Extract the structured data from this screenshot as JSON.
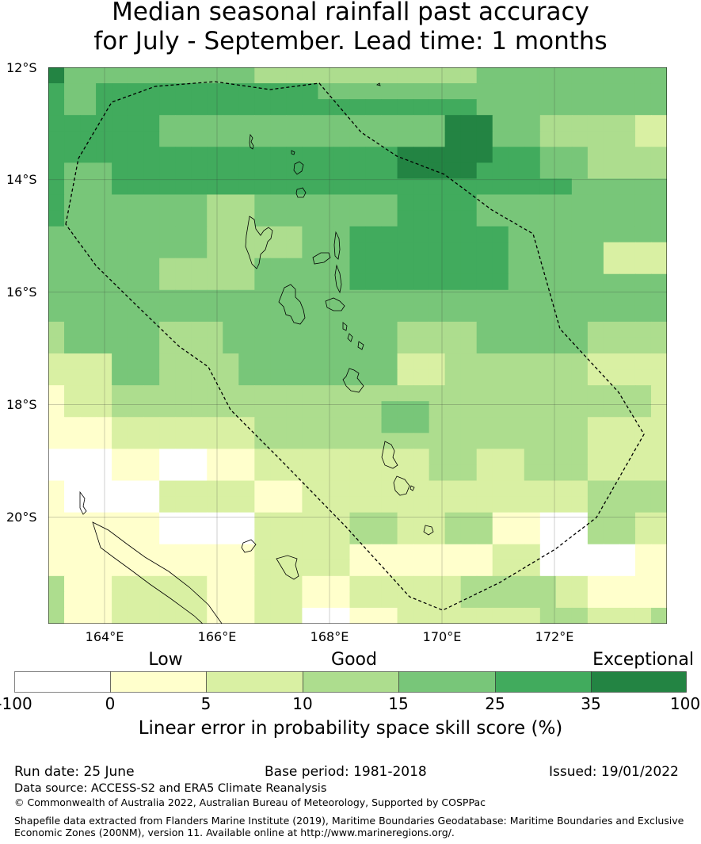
{
  "title": {
    "line1": "Median seasonal rainfall past accuracy",
    "line2": "for July - September. Lead time: 1 months"
  },
  "map": {
    "latitude_labels": [
      "12°S",
      "14°S",
      "16°S",
      "18°S",
      "20°S"
    ],
    "longitude_labels": [
      "164°E",
      "166°E",
      "168°E",
      "170°E",
      "172°E"
    ],
    "lon_range": [
      163.0,
      174.0
    ],
    "lat_range": [
      -21.9,
      -12.0
    ],
    "boundary": "dashed EEZ outline",
    "colors": [
      "#ffffff",
      "#ffffcc",
      "#d9f0a3",
      "#addd8e",
      "#78c679",
      "#41ab5d",
      "#238443"
    ],
    "grid": [
      [
        6,
        4,
        4,
        4,
        4,
        4,
        4,
        4,
        4,
        4,
        4,
        4,
        4,
        3,
        3,
        3,
        3,
        3,
        3,
        3,
        3,
        3,
        3,
        3,
        3,
        3,
        3,
        4,
        4,
        4,
        4,
        4,
        4,
        4,
        4,
        4,
        4,
        4,
        4
      ],
      [
        5,
        4,
        4,
        5,
        5,
        5,
        5,
        5,
        5,
        5,
        5,
        5,
        5,
        5,
        5,
        5,
        5,
        4,
        4,
        4,
        4,
        4,
        4,
        4,
        4,
        4,
        4,
        4,
        4,
        4,
        4,
        4,
        4,
        4,
        4,
        4,
        4,
        4,
        4
      ],
      [
        5,
        4,
        4,
        5,
        5,
        5,
        5,
        5,
        5,
        5,
        5,
        5,
        5,
        5,
        5,
        5,
        5,
        5,
        5,
        5,
        5,
        5,
        5,
        5,
        5,
        5,
        5,
        4,
        4,
        4,
        4,
        4,
        4,
        4,
        4,
        4,
        4,
        4,
        4
      ],
      [
        5,
        5,
        5,
        5,
        5,
        5,
        5,
        4,
        4,
        4,
        4,
        4,
        4,
        4,
        4,
        4,
        4,
        4,
        4,
        4,
        4,
        4,
        4,
        4,
        4,
        6,
        6,
        6,
        4,
        4,
        4,
        3,
        3,
        3,
        3,
        3,
        3,
        2,
        2
      ],
      [
        5,
        5,
        5,
        5,
        5,
        5,
        5,
        4,
        4,
        4,
        4,
        4,
        4,
        4,
        4,
        4,
        4,
        4,
        4,
        4,
        4,
        4,
        4,
        4,
        4,
        6,
        6,
        6,
        4,
        4,
        4,
        3,
        3,
        3,
        3,
        3,
        3,
        2,
        2
      ],
      [
        5,
        5,
        5,
        5,
        5,
        5,
        5,
        5,
        5,
        5,
        5,
        5,
        5,
        5,
        5,
        5,
        5,
        5,
        5,
        5,
        5,
        5,
        6,
        6,
        6,
        6,
        6,
        6,
        5,
        5,
        5,
        4,
        4,
        4,
        3,
        3,
        3,
        3,
        3
      ],
      [
        5,
        4,
        4,
        4,
        5,
        5,
        5,
        5,
        5,
        5,
        5,
        5,
        5,
        5,
        5,
        5,
        5,
        5,
        5,
        5,
        5,
        5,
        6,
        6,
        6,
        6,
        6,
        5,
        5,
        5,
        5,
        4,
        4,
        4,
        3,
        3,
        3,
        3,
        3
      ],
      [
        5,
        4,
        4,
        4,
        5,
        5,
        5,
        5,
        5,
        5,
        5,
        5,
        5,
        5,
        5,
        5,
        5,
        5,
        5,
        5,
        5,
        5,
        5,
        5,
        5,
        5,
        5,
        5,
        5,
        5,
        5,
        5,
        5,
        4,
        4,
        4,
        4,
        4,
        4
      ],
      [
        5,
        4,
        4,
        4,
        4,
        4,
        4,
        4,
        4,
        4,
        3,
        3,
        3,
        4,
        4,
        4,
        4,
        4,
        4,
        4,
        4,
        4,
        5,
        5,
        5,
        5,
        5,
        4,
        4,
        4,
        4,
        4,
        4,
        4,
        4,
        4,
        4,
        4,
        4
      ],
      [
        5,
        4,
        4,
        4,
        4,
        4,
        4,
        4,
        4,
        4,
        3,
        3,
        3,
        4,
        4,
        4,
        4,
        4,
        4,
        4,
        4,
        4,
        5,
        5,
        5,
        5,
        5,
        4,
        4,
        4,
        4,
        4,
        4,
        4,
        4,
        4,
        4,
        4,
        4
      ],
      [
        4,
        4,
        4,
        4,
        4,
        4,
        4,
        4,
        4,
        4,
        3,
        3,
        3,
        3,
        3,
        3,
        4,
        4,
        4,
        5,
        5,
        5,
        5,
        5,
        5,
        5,
        5,
        5,
        5,
        4,
        4,
        4,
        4,
        4,
        4,
        4,
        4,
        4,
        4
      ],
      [
        4,
        4,
        4,
        4,
        4,
        4,
        4,
        4,
        4,
        4,
        3,
        3,
        3,
        3,
        3,
        3,
        4,
        4,
        4,
        5,
        5,
        5,
        5,
        5,
        5,
        5,
        5,
        5,
        5,
        4,
        4,
        4,
        4,
        4,
        4,
        2,
        2,
        2,
        2
      ],
      [
        4,
        4,
        4,
        4,
        4,
        4,
        4,
        3,
        3,
        3,
        3,
        3,
        3,
        4,
        4,
        4,
        4,
        4,
        4,
        5,
        5,
        5,
        5,
        5,
        5,
        5,
        5,
        5,
        5,
        4,
        4,
        4,
        4,
        4,
        4,
        2,
        2,
        2,
        2
      ],
      [
        4,
        4,
        4,
        4,
        4,
        4,
        4,
        3,
        3,
        3,
        3,
        3,
        3,
        4,
        4,
        4,
        4,
        4,
        4,
        5,
        5,
        5,
        5,
        5,
        5,
        5,
        5,
        5,
        5,
        4,
        4,
        4,
        4,
        4,
        4,
        4,
        4,
        4,
        4
      ],
      [
        4,
        4,
        4,
        4,
        4,
        4,
        4,
        4,
        4,
        4,
        4,
        4,
        4,
        4,
        4,
        4,
        4,
        4,
        4,
        4,
        4,
        4,
        4,
        4,
        4,
        4,
        4,
        4,
        4,
        4,
        4,
        4,
        4,
        4,
        4,
        4,
        4,
        4,
        4
      ],
      [
        4,
        4,
        4,
        4,
        4,
        4,
        4,
        4,
        4,
        4,
        4,
        4,
        4,
        4,
        4,
        4,
        4,
        4,
        4,
        4,
        4,
        4,
        4,
        4,
        4,
        4,
        4,
        4,
        4,
        4,
        4,
        4,
        4,
        4,
        4,
        4,
        4,
        4,
        4
      ],
      [
        3,
        4,
        4,
        4,
        4,
        4,
        4,
        3,
        3,
        3,
        3,
        4,
        4,
        4,
        4,
        4,
        4,
        4,
        4,
        4,
        4,
        4,
        3,
        3,
        3,
        3,
        3,
        4,
        4,
        4,
        4,
        4,
        4,
        4,
        3,
        3,
        3,
        3,
        3
      ],
      [
        3,
        4,
        4,
        4,
        4,
        4,
        4,
        3,
        3,
        3,
        3,
        4,
        4,
        4,
        4,
        4,
        4,
        4,
        4,
        4,
        4,
        4,
        3,
        3,
        3,
        3,
        3,
        4,
        4,
        4,
        4,
        4,
        4,
        4,
        3,
        3,
        3,
        3,
        3
      ],
      [
        2,
        2,
        2,
        2,
        4,
        4,
        4,
        3,
        3,
        3,
        3,
        3,
        4,
        4,
        4,
        4,
        4,
        4,
        4,
        4,
        4,
        4,
        2,
        2,
        2,
        3,
        3,
        3,
        3,
        3,
        3,
        3,
        3,
        3,
        2,
        2,
        2,
        2,
        2
      ],
      [
        2,
        2,
        2,
        2,
        4,
        4,
        4,
        3,
        3,
        3,
        3,
        3,
        4,
        4,
        4,
        4,
        4,
        4,
        4,
        4,
        4,
        4,
        2,
        2,
        2,
        3,
        3,
        3,
        3,
        3,
        3,
        3,
        3,
        3,
        2,
        2,
        2,
        2,
        2
      ],
      [
        1,
        2,
        2,
        2,
        3,
        3,
        3,
        3,
        3,
        3,
        3,
        3,
        3,
        3,
        3,
        3,
        3,
        3,
        3,
        3,
        3,
        3,
        3,
        3,
        3,
        3,
        3,
        3,
        3,
        3,
        3,
        3,
        3,
        3,
        3,
        3,
        3,
        3,
        2
      ],
      [
        1,
        2,
        2,
        2,
        3,
        3,
        3,
        3,
        3,
        3,
        3,
        3,
        3,
        3,
        3,
        3,
        3,
        3,
        3,
        3,
        3,
        4,
        4,
        4,
        3,
        3,
        3,
        3,
        3,
        3,
        3,
        3,
        3,
        3,
        3,
        3,
        3,
        3,
        2
      ],
      [
        1,
        1,
        1,
        1,
        2,
        2,
        2,
        2,
        2,
        2,
        2,
        2,
        2,
        3,
        3,
        3,
        3,
        3,
        3,
        3,
        3,
        4,
        4,
        4,
        3,
        3,
        3,
        3,
        3,
        3,
        3,
        3,
        3,
        3,
        2,
        2,
        2,
        2,
        2
      ],
      [
        1,
        1,
        1,
        1,
        2,
        2,
        2,
        2,
        2,
        2,
        2,
        2,
        2,
        3,
        3,
        3,
        3,
        3,
        3,
        3,
        3,
        3,
        3,
        3,
        3,
        3,
        3,
        3,
        3,
        3,
        3,
        3,
        3,
        3,
        2,
        2,
        2,
        2,
        2
      ],
      [
        0,
        0,
        0,
        0,
        1,
        1,
        1,
        0,
        0,
        0,
        1,
        1,
        1,
        2,
        2,
        2,
        2,
        2,
        2,
        2,
        2,
        2,
        2,
        2,
        3,
        3,
        3,
        2,
        2,
        2,
        3,
        3,
        3,
        3,
        2,
        2,
        2,
        2,
        2
      ],
      [
        0,
        0,
        0,
        0,
        1,
        1,
        1,
        0,
        0,
        0,
        1,
        1,
        1,
        2,
        2,
        2,
        2,
        2,
        2,
        2,
        2,
        2,
        2,
        2,
        3,
        3,
        3,
        2,
        2,
        2,
        3,
        3,
        3,
        3,
        2,
        2,
        2,
        2,
        2
      ],
      [
        1,
        0,
        0,
        0,
        0,
        0,
        0,
        2,
        2,
        2,
        2,
        2,
        2,
        1,
        1,
        1,
        2,
        2,
        2,
        2,
        2,
        2,
        2,
        2,
        2,
        2,
        2,
        2,
        2,
        2,
        2,
        2,
        2,
        2,
        3,
        3,
        3,
        3,
        3
      ],
      [
        1,
        0,
        0,
        0,
        0,
        0,
        0,
        2,
        2,
        2,
        2,
        2,
        2,
        1,
        1,
        1,
        2,
        2,
        2,
        2,
        2,
        2,
        2,
        2,
        2,
        2,
        2,
        2,
        2,
        2,
        2,
        2,
        2,
        2,
        3,
        3,
        3,
        3,
        3
      ],
      [
        1,
        1,
        1,
        1,
        1,
        1,
        1,
        0,
        0,
        0,
        0,
        0,
        0,
        2,
        2,
        2,
        2,
        2,
        2,
        3,
        3,
        3,
        2,
        2,
        2,
        3,
        3,
        3,
        1,
        1,
        1,
        0,
        0,
        0,
        3,
        3,
        3,
        2,
        2
      ],
      [
        1,
        1,
        1,
        1,
        1,
        1,
        1,
        0,
        0,
        0,
        0,
        0,
        0,
        2,
        2,
        2,
        2,
        2,
        2,
        3,
        3,
        3,
        2,
        2,
        2,
        3,
        3,
        3,
        1,
        1,
        1,
        0,
        0,
        0,
        3,
        3,
        3,
        2,
        2
      ],
      [
        1,
        1,
        1,
        1,
        1,
        1,
        1,
        1,
        1,
        1,
        1,
        1,
        1,
        2,
        2,
        2,
        2,
        2,
        2,
        1,
        1,
        1,
        1,
        1,
        1,
        1,
        1,
        1,
        2,
        2,
        2,
        0,
        0,
        0,
        0,
        0,
        0,
        1,
        1
      ],
      [
        1,
        1,
        1,
        1,
        1,
        1,
        1,
        1,
        1,
        1,
        1,
        1,
        1,
        2,
        2,
        2,
        2,
        2,
        2,
        1,
        1,
        1,
        1,
        1,
        1,
        1,
        1,
        1,
        2,
        2,
        2,
        0,
        0,
        0,
        0,
        0,
        0,
        1,
        1
      ],
      [
        3,
        1,
        1,
        1,
        2,
        2,
        2,
        2,
        2,
        2,
        1,
        1,
        1,
        2,
        2,
        2,
        1,
        1,
        1,
        2,
        2,
        2,
        2,
        2,
        2,
        2,
        3,
        3,
        3,
        3,
        3,
        3,
        2,
        2,
        1,
        1,
        1,
        1,
        1
      ],
      [
        3,
        1,
        1,
        1,
        2,
        2,
        2,
        2,
        2,
        2,
        1,
        1,
        1,
        2,
        2,
        2,
        1,
        1,
        1,
        2,
        2,
        2,
        2,
        2,
        2,
        2,
        3,
        3,
        3,
        3,
        3,
        3,
        2,
        2,
        1,
        1,
        1,
        1,
        1
      ],
      [
        3,
        1,
        1,
        1,
        2,
        2,
        2,
        2,
        2,
        2,
        1,
        1,
        1,
        2,
        2,
        2,
        0,
        0,
        0,
        1,
        1,
        1,
        2,
        2,
        2,
        2,
        2,
        2,
        2,
        2,
        2,
        3,
        3,
        3,
        2,
        2,
        2,
        2,
        3
      ]
    ]
  },
  "colorbar": {
    "categories": [
      "Low",
      "Good",
      "Exceptional"
    ],
    "ticks": [
      "-100",
      "0",
      "5",
      "10",
      "15",
      "25",
      "35",
      "100"
    ],
    "colors": [
      "#ffffff",
      "#ffffcc",
      "#d9f0a3",
      "#addd8e",
      "#78c679",
      "#41ab5d",
      "#238443"
    ],
    "label": "Linear error in probability space skill score (%)"
  },
  "footer": {
    "run_date": "Run date: 25 June",
    "base_period": "Base period: 1981-2018",
    "issued": "Issued: 19/01/2022",
    "data_source": "Data source: ACCESS-S2 and ERA5 Climate Reanalysis",
    "copyright": "© Commonwealth of Australia 2022, Australian Bureau of Meteorology, Supported by COSPPac",
    "shapefile_line1": "Shapefile data extracted from Flanders Marine Institute (2019), Maritime Boundaries Geodatabase: Maritime Boundaries and Exclusive",
    "shapefile_line2": "Economic Zones (200NM), version 11. Available online at http://www.marineregions.org/."
  }
}
